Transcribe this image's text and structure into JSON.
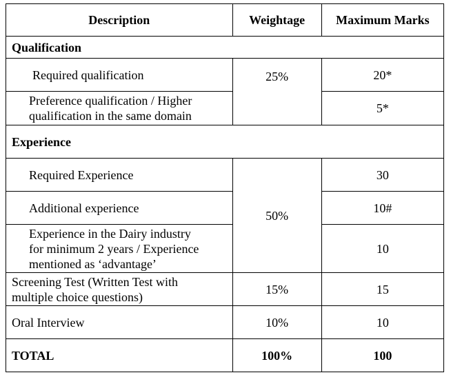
{
  "header": {
    "description": "Description",
    "weightage": "Weightage",
    "maximum_marks": "Maximum Marks"
  },
  "qualification": {
    "title": "Qualification",
    "weightage": "25%",
    "rows": [
      {
        "description": "Required qualification",
        "marks": "20*"
      },
      {
        "description_line1": "Preference qualification / Higher",
        "description_line2": "qualification in the same domain",
        "marks": "5*"
      }
    ]
  },
  "experience": {
    "title": "Experience",
    "weightage": "50%",
    "rows": [
      {
        "description": "Required Experience",
        "marks": "30"
      },
      {
        "description": "Additional experience",
        "marks": "10#"
      },
      {
        "description_line1": "Experience in the Dairy industry",
        "description_line2": "for minimum 2 years / Experience",
        "description_line3": "mentioned as ‘advantage’",
        "marks": "10"
      }
    ]
  },
  "screening": {
    "description_line1": "Screening Test (Written Test with",
    "description_line2": "multiple choice questions)",
    "weightage": "15%",
    "marks": "15"
  },
  "interview": {
    "description": "Oral Interview",
    "weightage": "10%",
    "marks": "10"
  },
  "total": {
    "label": "TOTAL",
    "weightage": "100%",
    "marks": "100"
  }
}
